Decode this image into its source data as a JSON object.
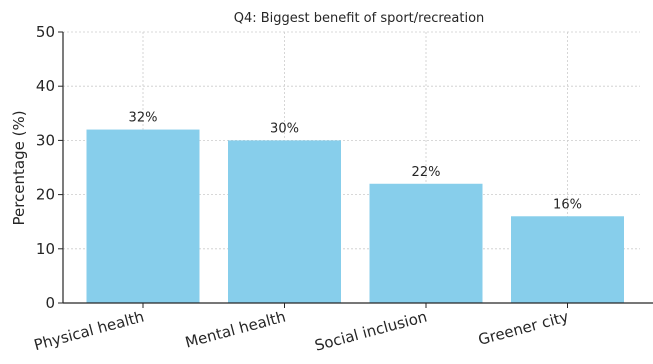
{
  "chart_data": {
    "type": "bar",
    "title": "Q4: Biggest benefit of sport/recreation",
    "xlabel": "",
    "ylabel": "Percentage (%)",
    "categories": [
      "Physical health",
      "Mental health",
      "Social inclusion",
      "Greener city"
    ],
    "values": [
      32,
      30,
      22,
      16
    ],
    "data_labels": [
      "32%",
      "30%",
      "22%",
      "16%"
    ],
    "ylim": [
      0,
      50
    ],
    "yticks": [
      0,
      10,
      20,
      30,
      40,
      50
    ],
    "grid": true,
    "bar_color": "#87ceeb"
  }
}
